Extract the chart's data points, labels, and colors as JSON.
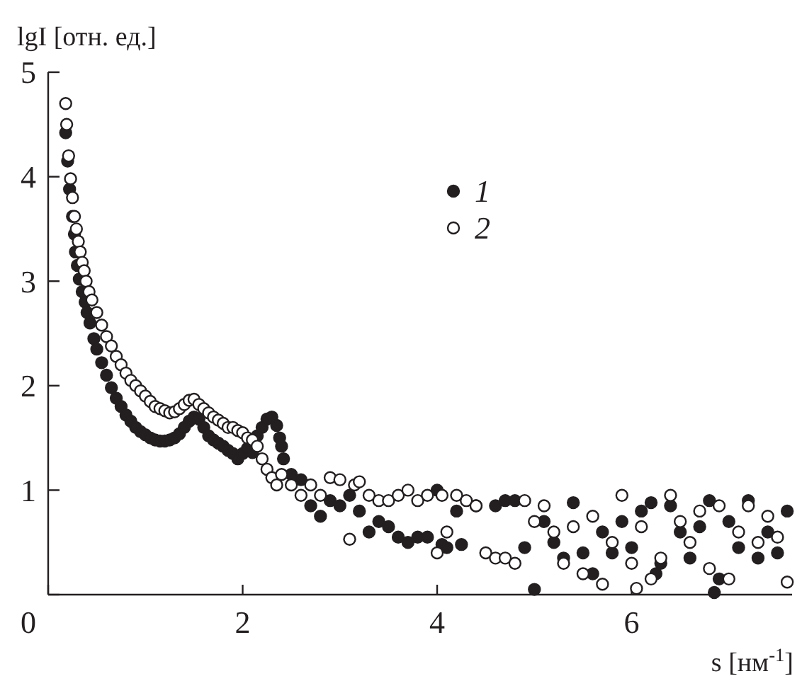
{
  "chart_data": {
    "type": "scatter",
    "xlabel": "s [нм$^{-1}$]",
    "ylabel": "lgI [отн. ед.]",
    "xlim": [
      0,
      7.65
    ],
    "ylim": [
      0,
      5
    ],
    "xticks": [
      0,
      2,
      4,
      6
    ],
    "yticks": [
      {
        "value": 0,
        "label": null
      },
      1,
      2,
      3,
      4,
      5
    ],
    "marker": "circle",
    "legend": "top right",
    "grid": false,
    "series": [
      {
        "name": "1",
        "color": "#231f20",
        "x": [
          0.18,
          0.2,
          0.22,
          0.25,
          0.27,
          0.28,
          0.3,
          0.32,
          0.35,
          0.38,
          0.4,
          0.43,
          0.47,
          0.5,
          0.55,
          0.6,
          0.65,
          0.7,
          0.75,
          0.8,
          0.85,
          0.9,
          0.95,
          1.0,
          1.05,
          1.1,
          1.15,
          1.2,
          1.25,
          1.3,
          1.35,
          1.4,
          1.45,
          1.5,
          1.55,
          1.6,
          1.65,
          1.7,
          1.75,
          1.8,
          1.85,
          1.9,
          1.95,
          2.0,
          2.05,
          2.1,
          2.15,
          2.2,
          2.25,
          2.3,
          2.35,
          2.38,
          2.4,
          2.42,
          2.5,
          2.6,
          2.7,
          2.8,
          2.9,
          3.0,
          3.1,
          3.2,
          3.3,
          3.4,
          3.5,
          3.6,
          3.7,
          3.8,
          3.9,
          4.0,
          4.05,
          4.1,
          4.2,
          4.25,
          4.4,
          4.6,
          4.7,
          4.8,
          4.9,
          5.0,
          5.1,
          5.2,
          5.3,
          5.4,
          5.5,
          5.6,
          5.7,
          5.8,
          5.9,
          6.0,
          6.1,
          6.2,
          6.25,
          6.3,
          6.4,
          6.5,
          6.6,
          6.7,
          6.8,
          6.85,
          6.9,
          7.0,
          7.1,
          7.2,
          7.3,
          7.4,
          7.5,
          7.6
        ],
        "values": [
          4.42,
          4.15,
          3.88,
          3.62,
          3.45,
          3.28,
          3.15,
          3.02,
          2.9,
          2.8,
          2.7,
          2.6,
          2.45,
          2.35,
          2.22,
          2.1,
          1.98,
          1.88,
          1.8,
          1.72,
          1.66,
          1.6,
          1.56,
          1.53,
          1.5,
          1.48,
          1.47,
          1.47,
          1.48,
          1.5,
          1.54,
          1.6,
          1.66,
          1.7,
          1.68,
          1.6,
          1.52,
          1.48,
          1.45,
          1.42,
          1.38,
          1.35,
          1.3,
          1.35,
          1.4,
          1.36,
          1.52,
          1.6,
          1.68,
          1.7,
          1.62,
          1.5,
          1.42,
          1.3,
          1.15,
          1.1,
          0.85,
          0.75,
          0.9,
          0.85,
          0.95,
          0.8,
          0.6,
          0.7,
          0.65,
          0.55,
          0.5,
          0.55,
          0.55,
          1.0,
          0.48,
          0.45,
          0.8,
          0.48,
          0.85,
          0.85,
          0.9,
          0.9,
          0.45,
          0.05,
          0.7,
          0.5,
          0.35,
          0.88,
          0.4,
          0.2,
          0.6,
          0.4,
          0.7,
          0.45,
          0.8,
          0.88,
          0.2,
          0.3,
          0.85,
          0.6,
          0.35,
          0.65,
          0.9,
          0.02,
          0.15,
          0.7,
          0.45,
          0.9,
          0.35,
          0.6,
          0.4,
          0.8
        ]
      },
      {
        "name": "2",
        "color": "#ffffff",
        "x": [
          0.18,
          0.19,
          0.21,
          0.23,
          0.25,
          0.27,
          0.29,
          0.31,
          0.33,
          0.35,
          0.37,
          0.39,
          0.42,
          0.45,
          0.5,
          0.55,
          0.6,
          0.65,
          0.7,
          0.75,
          0.8,
          0.85,
          0.9,
          0.95,
          1.0,
          1.05,
          1.1,
          1.15,
          1.2,
          1.25,
          1.3,
          1.35,
          1.4,
          1.45,
          1.5,
          1.55,
          1.6,
          1.65,
          1.7,
          1.75,
          1.8,
          1.85,
          1.9,
          1.95,
          2.0,
          2.05,
          2.1,
          2.15,
          2.2,
          2.25,
          2.3,
          2.35,
          2.4,
          2.5,
          2.6,
          2.7,
          2.8,
          2.9,
          3.0,
          3.1,
          3.15,
          3.2,
          3.3,
          3.4,
          3.5,
          3.6,
          3.7,
          3.8,
          3.9,
          4.0,
          4.05,
          4.1,
          4.2,
          4.3,
          4.4,
          4.5,
          4.6,
          4.7,
          4.8,
          4.9,
          5.0,
          5.1,
          5.2,
          5.3,
          5.4,
          5.5,
          5.6,
          5.7,
          5.8,
          5.9,
          6.0,
          6.05,
          6.1,
          6.2,
          6.3,
          6.4,
          6.5,
          6.6,
          6.7,
          6.8,
          6.9,
          7.0,
          7.1,
          7.2,
          7.3,
          7.4,
          7.5,
          7.6
        ],
        "values": [
          4.7,
          4.5,
          4.2,
          3.98,
          3.8,
          3.62,
          3.5,
          3.38,
          3.28,
          3.18,
          3.1,
          3.0,
          2.9,
          2.82,
          2.7,
          2.58,
          2.47,
          2.38,
          2.28,
          2.2,
          2.12,
          2.05,
          2.0,
          1.95,
          1.9,
          1.85,
          1.8,
          1.78,
          1.76,
          1.74,
          1.75,
          1.78,
          1.82,
          1.86,
          1.87,
          1.82,
          1.78,
          1.74,
          1.7,
          1.67,
          1.64,
          1.6,
          1.6,
          1.57,
          1.55,
          1.5,
          1.48,
          1.42,
          1.3,
          1.2,
          1.12,
          1.05,
          1.15,
          1.05,
          0.95,
          1.05,
          0.95,
          1.12,
          1.1,
          0.53,
          1.05,
          1.08,
          0.95,
          0.9,
          0.9,
          0.95,
          1.0,
          0.9,
          0.95,
          0.4,
          0.95,
          0.6,
          0.95,
          0.9,
          0.85,
          0.4,
          0.35,
          0.35,
          0.3,
          0.9,
          0.7,
          0.85,
          0.6,
          0.3,
          0.65,
          0.2,
          0.75,
          0.1,
          0.5,
          0.95,
          0.3,
          0.06,
          0.65,
          0.15,
          0.35,
          0.95,
          0.7,
          0.5,
          0.8,
          0.25,
          0.85,
          0.15,
          0.6,
          0.85,
          0.5,
          0.75,
          0.55,
          0.12
        ]
      }
    ]
  }
}
